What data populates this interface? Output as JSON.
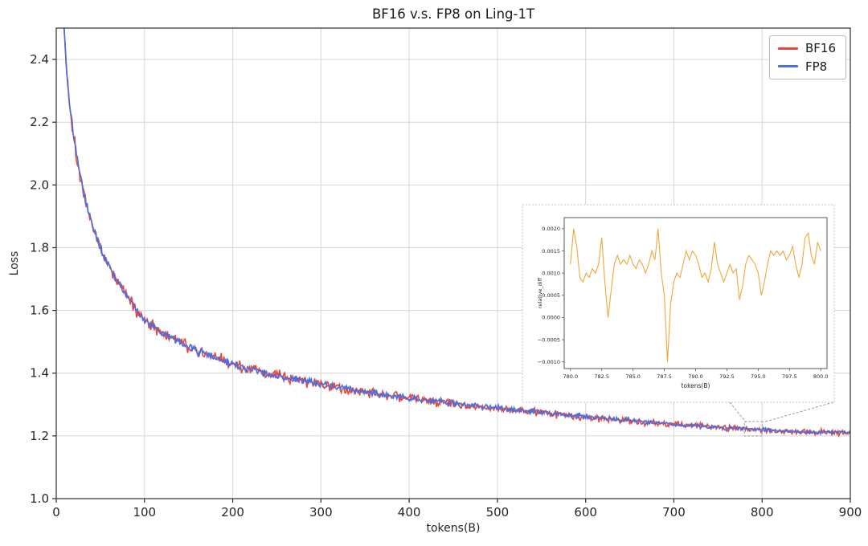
{
  "figure": {
    "title": "BF16 v.s. FP8 on Ling-1T",
    "background": "#ffffff"
  },
  "chart_data": [
    {
      "id": "main-loss-curves",
      "type": "line",
      "title": "BF16 v.s. FP8 on Ling-1T",
      "xlabel": "tokens(B)",
      "ylabel": "Loss",
      "xlim": [
        0,
        900
      ],
      "ylim": [
        1.0,
        2.5
      ],
      "grid": true,
      "grid_color": "#d6d6d6",
      "axis_color": "#2e2e2e",
      "xticks": {
        "values": [
          0,
          100,
          200,
          300,
          400,
          500,
          600,
          700,
          800,
          900
        ],
        "labels": [
          "0",
          "100",
          "200",
          "300",
          "400",
          "500",
          "600",
          "700",
          "800",
          "900"
        ]
      },
      "yticks": {
        "values": [
          1.0,
          1.2,
          1.4,
          1.6,
          1.8,
          2.0,
          2.2,
          2.4
        ],
        "labels": [
          "1.0",
          "1.2",
          "1.4",
          "1.6",
          "1.8",
          "2.0",
          "2.2",
          "2.4"
        ]
      },
      "legend": {
        "position": "upper right",
        "entries": [
          {
            "label": "BF16",
            "color": "#e8473b"
          },
          {
            "label": "FP8",
            "color": "#4a6fe1"
          }
        ]
      },
      "noise": {
        "seed": 1337,
        "amp_start": 0.021,
        "amp_end": 0.008
      },
      "series": [
        {
          "name": "BF16",
          "color": "#e8473b",
          "noise_scale": 1.45,
          "stroke_width": 1.6,
          "x": [
            5,
            8,
            10,
            12,
            15,
            20,
            25,
            30,
            35,
            40,
            45,
            50,
            60,
            70,
            80,
            90,
            100,
            110,
            120,
            130,
            140,
            150,
            160,
            170,
            180,
            190,
            200,
            220,
            240,
            260,
            280,
            300,
            320,
            340,
            360,
            380,
            400,
            420,
            440,
            460,
            480,
            500,
            520,
            540,
            560,
            580,
            600,
            620,
            640,
            660,
            680,
            700,
            720,
            740,
            760,
            780,
            800,
            820,
            840,
            860,
            880,
            900
          ],
          "y": [
            2.8,
            2.55,
            2.44,
            2.36,
            2.26,
            2.15,
            2.06,
            1.99,
            1.93,
            1.88,
            1.84,
            1.8,
            1.74,
            1.69,
            1.645,
            1.605,
            1.57,
            1.55,
            1.53,
            1.515,
            1.5,
            1.485,
            1.47,
            1.46,
            1.45,
            1.44,
            1.43,
            1.412,
            1.398,
            1.386,
            1.375,
            1.365,
            1.355,
            1.346,
            1.337,
            1.328,
            1.32,
            1.314,
            1.308,
            1.301,
            1.295,
            1.29,
            1.284,
            1.278,
            1.271,
            1.266,
            1.261,
            1.256,
            1.251,
            1.246,
            1.241,
            1.237,
            1.233,
            1.23,
            1.226,
            1.223,
            1.22,
            1.217,
            1.214,
            1.212,
            1.211,
            1.21
          ]
        },
        {
          "name": "FP8",
          "color": "#4a6fe1",
          "noise_scale": 1.0,
          "stroke_width": 1.6,
          "x": [
            5,
            8,
            10,
            12,
            15,
            20,
            25,
            30,
            35,
            40,
            45,
            50,
            60,
            70,
            80,
            90,
            100,
            110,
            120,
            130,
            140,
            150,
            160,
            170,
            180,
            190,
            200,
            220,
            240,
            260,
            280,
            300,
            320,
            340,
            360,
            380,
            400,
            420,
            440,
            460,
            480,
            500,
            520,
            540,
            560,
            580,
            600,
            620,
            640,
            660,
            680,
            700,
            720,
            740,
            760,
            780,
            800,
            820,
            840,
            860,
            880,
            900
          ],
          "y": [
            2.8,
            2.55,
            2.44,
            2.36,
            2.26,
            2.15,
            2.06,
            1.99,
            1.93,
            1.88,
            1.84,
            1.8,
            1.74,
            1.69,
            1.645,
            1.605,
            1.57,
            1.55,
            1.53,
            1.515,
            1.5,
            1.485,
            1.47,
            1.46,
            1.45,
            1.44,
            1.43,
            1.412,
            1.398,
            1.386,
            1.375,
            1.365,
            1.355,
            1.346,
            1.337,
            1.328,
            1.32,
            1.314,
            1.308,
            1.301,
            1.295,
            1.29,
            1.284,
            1.278,
            1.271,
            1.266,
            1.261,
            1.256,
            1.251,
            1.246,
            1.241,
            1.237,
            1.233,
            1.23,
            1.226,
            1.223,
            1.22,
            1.217,
            1.214,
            1.212,
            1.211,
            1.21
          ]
        }
      ],
      "zoom_region": {
        "x0": 780,
        "x1": 800
      }
    },
    {
      "id": "inset-relative-diff",
      "type": "line",
      "xlabel": "tokens(B)",
      "ylabel": "relative_diff",
      "xlim": [
        779.5,
        800.5
      ],
      "ylim": [
        -0.00115,
        0.00225
      ],
      "grid": false,
      "xticks": {
        "values": [
          780.0,
          782.5,
          785.0,
          787.5,
          790.0,
          792.5,
          795.0,
          797.5,
          800.0
        ],
        "labels": [
          "780.0",
          "782.5",
          "785.0",
          "787.5",
          "790.0",
          "792.5",
          "795.0",
          "797.5",
          "800.0"
        ]
      },
      "yticks": {
        "values": [
          -0.001,
          -0.0005,
          0.0,
          0.0005,
          0.001,
          0.0015,
          0.002
        ],
        "labels": [
          "−0.0010",
          "−0.0005",
          "0.0000",
          "0.0005",
          "0.0010",
          "0.0015",
          "0.0020"
        ]
      },
      "series": [
        {
          "name": "relative_diff",
          "color": "#f2a63a",
          "stroke_width": 1.1,
          "x_start": 780.0,
          "x_step": 0.25,
          "y": [
            0.0012,
            0.002,
            0.0016,
            0.0009,
            0.0008,
            0.001,
            0.0009,
            0.0011,
            0.001,
            0.0012,
            0.0018,
            0.0008,
            0.0,
            0.0006,
            0.0012,
            0.0014,
            0.0012,
            0.0013,
            0.0012,
            0.0014,
            0.0012,
            0.0011,
            0.0013,
            0.0012,
            0.001,
            0.0012,
            0.0015,
            0.0013,
            0.002,
            0.001,
            0.0005,
            -0.001,
            0.0003,
            0.0008,
            0.001,
            0.0009,
            0.0012,
            0.0015,
            0.0013,
            0.0015,
            0.0014,
            0.0012,
            0.0009,
            0.001,
            0.0008,
            0.0011,
            0.0017,
            0.0012,
            0.001,
            0.0008,
            0.001,
            0.0012,
            0.001,
            0.0011,
            0.0004,
            0.0007,
            0.0012,
            0.0014,
            0.0013,
            0.0012,
            0.001,
            0.0005,
            0.0008,
            0.0012,
            0.0015,
            0.0014,
            0.0015,
            0.0014,
            0.0015,
            0.0013,
            0.0014,
            0.0016,
            0.0012,
            0.0009,
            0.0012,
            0.0018,
            0.0019,
            0.0014,
            0.0012,
            0.0017,
            0.0015
          ]
        }
      ]
    }
  ]
}
